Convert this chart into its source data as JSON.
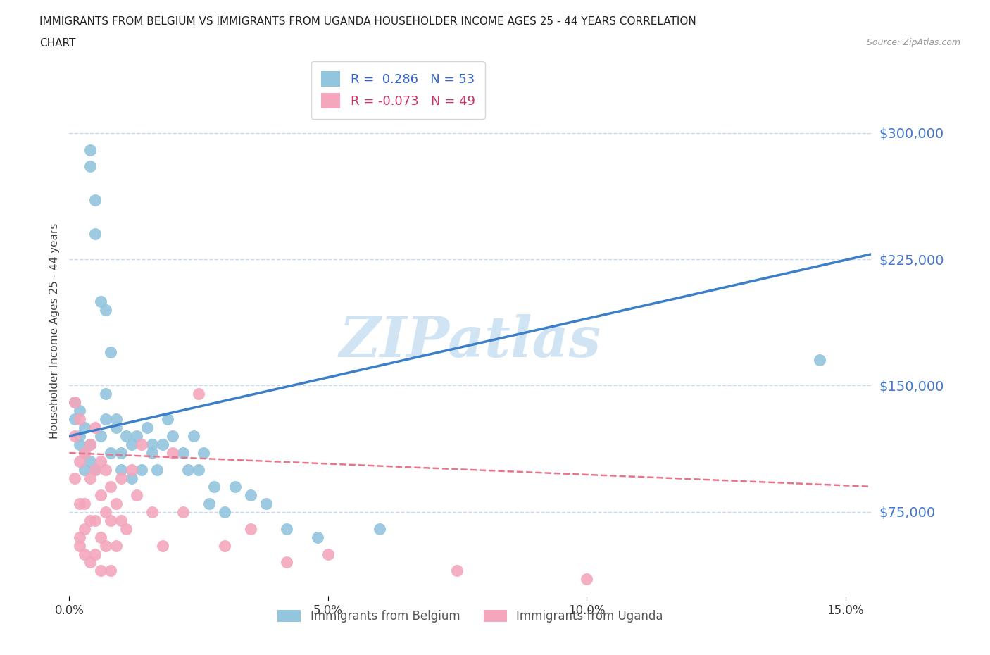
{
  "title_line1": "IMMIGRANTS FROM BELGIUM VS IMMIGRANTS FROM UGANDA HOUSEHOLDER INCOME AGES 25 - 44 YEARS CORRELATION",
  "title_line2": "CHART",
  "source": "Source: ZipAtlas.com",
  "ylabel": "Householder Income Ages 25 - 44 years",
  "xlim": [
    0.0,
    0.155
  ],
  "ylim": [
    25000,
    340000
  ],
  "yticks": [
    75000,
    150000,
    225000,
    300000
  ],
  "ytick_labels": [
    "$75,000",
    "$150,000",
    "$225,000",
    "$300,000"
  ],
  "xticks": [
    0.0,
    0.05,
    0.1,
    0.15
  ],
  "xtick_labels": [
    "0.0%",
    "5.0%",
    "10.0%",
    "15.0%"
  ],
  "r_belgium": 0.286,
  "n_belgium": 53,
  "r_uganda": -0.073,
  "n_uganda": 49,
  "color_belgium": "#92c5de",
  "color_uganda": "#f4a6bd",
  "trend_belgium": "#3d7ec8",
  "trend_uganda": "#e8758a",
  "background_color": "#ffffff",
  "grid_color_blue": "#c8d8f0",
  "grid_color_pink": "#f0c0cc",
  "watermark": "ZIPatlas",
  "watermark_color": "#d0e4f4",
  "trend_bel_x0": 0.0,
  "trend_bel_y0": 120000,
  "trend_bel_x1": 0.155,
  "trend_bel_y1": 228000,
  "trend_uga_x0": 0.0,
  "trend_uga_y0": 110000,
  "trend_uga_x1": 0.155,
  "trend_uga_y1": 90000,
  "belgium_x": [
    0.001,
    0.001,
    0.002,
    0.002,
    0.002,
    0.003,
    0.003,
    0.003,
    0.004,
    0.004,
    0.004,
    0.004,
    0.005,
    0.005,
    0.005,
    0.006,
    0.006,
    0.007,
    0.007,
    0.007,
    0.008,
    0.008,
    0.009,
    0.009,
    0.01,
    0.01,
    0.011,
    0.012,
    0.012,
    0.013,
    0.014,
    0.015,
    0.016,
    0.016,
    0.017,
    0.018,
    0.019,
    0.02,
    0.022,
    0.023,
    0.024,
    0.025,
    0.026,
    0.027,
    0.028,
    0.03,
    0.032,
    0.035,
    0.038,
    0.042,
    0.048,
    0.06,
    0.145
  ],
  "belgium_y": [
    130000,
    140000,
    120000,
    135000,
    115000,
    110000,
    125000,
    100000,
    105000,
    115000,
    280000,
    290000,
    260000,
    240000,
    100000,
    200000,
    120000,
    195000,
    130000,
    145000,
    170000,
    110000,
    125000,
    130000,
    100000,
    110000,
    120000,
    115000,
    95000,
    120000,
    100000,
    125000,
    115000,
    110000,
    100000,
    115000,
    130000,
    120000,
    110000,
    100000,
    120000,
    100000,
    110000,
    80000,
    90000,
    75000,
    90000,
    85000,
    80000,
    65000,
    60000,
    65000,
    165000
  ],
  "uganda_x": [
    0.001,
    0.001,
    0.001,
    0.002,
    0.002,
    0.002,
    0.002,
    0.002,
    0.003,
    0.003,
    0.003,
    0.003,
    0.004,
    0.004,
    0.004,
    0.004,
    0.005,
    0.005,
    0.005,
    0.005,
    0.006,
    0.006,
    0.006,
    0.006,
    0.007,
    0.007,
    0.007,
    0.008,
    0.008,
    0.008,
    0.009,
    0.009,
    0.01,
    0.01,
    0.011,
    0.012,
    0.013,
    0.014,
    0.016,
    0.018,
    0.02,
    0.022,
    0.025,
    0.03,
    0.035,
    0.042,
    0.05,
    0.075,
    0.1
  ],
  "uganda_y": [
    120000,
    140000,
    95000,
    130000,
    105000,
    80000,
    60000,
    55000,
    110000,
    80000,
    65000,
    50000,
    115000,
    95000,
    70000,
    45000,
    125000,
    100000,
    70000,
    50000,
    105000,
    85000,
    60000,
    40000,
    100000,
    75000,
    55000,
    90000,
    70000,
    40000,
    80000,
    55000,
    95000,
    70000,
    65000,
    100000,
    85000,
    115000,
    75000,
    55000,
    110000,
    75000,
    145000,
    55000,
    65000,
    45000,
    50000,
    40000,
    35000
  ]
}
